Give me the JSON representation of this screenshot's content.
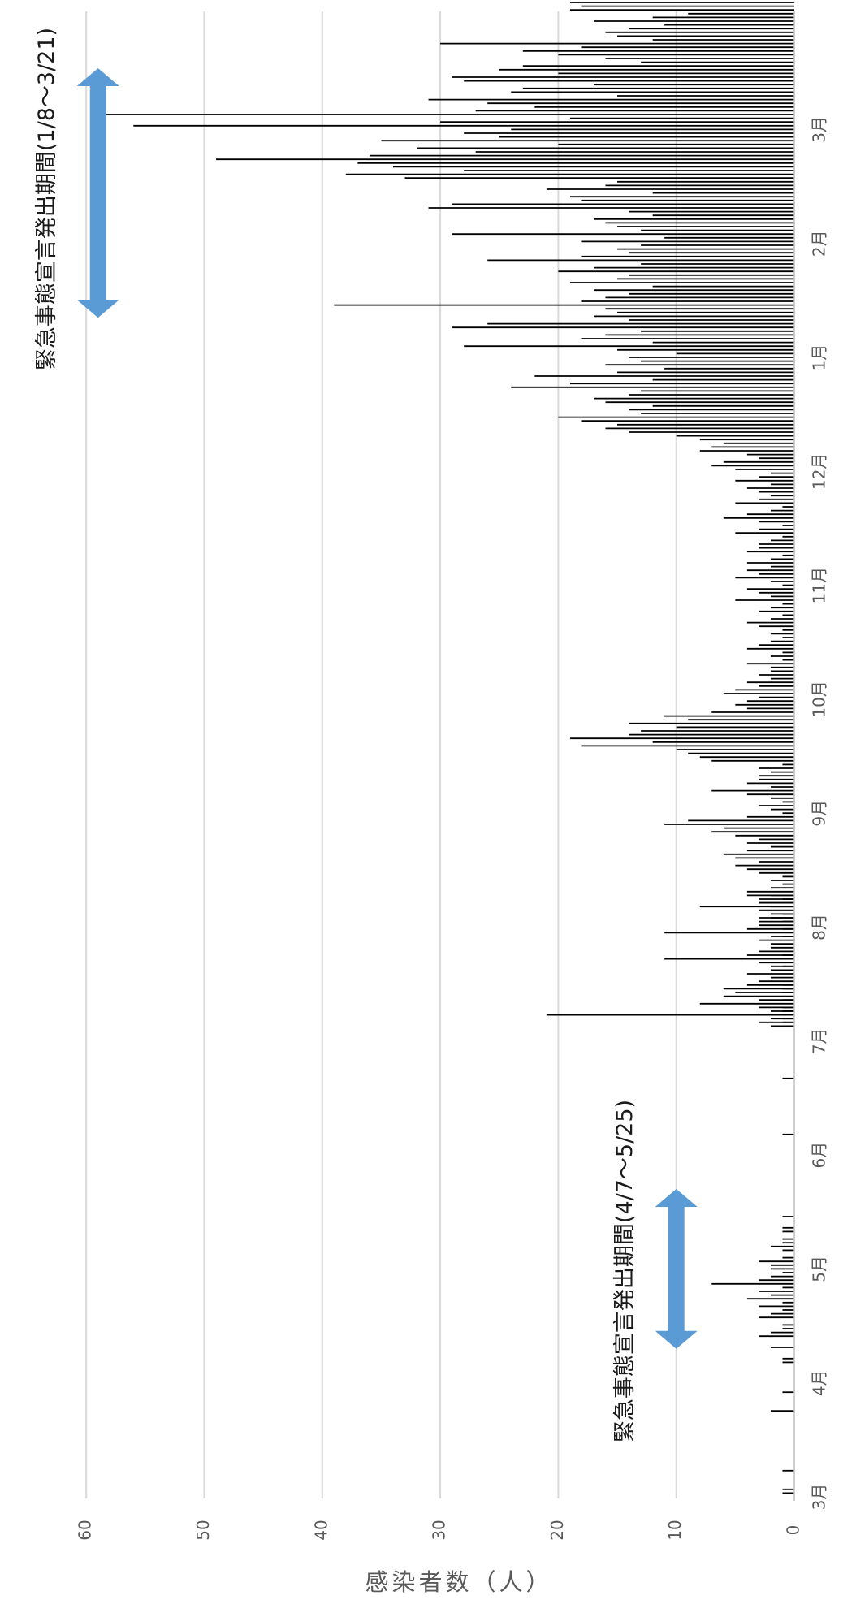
{
  "chart_data": {
    "type": "bar",
    "orientation": "rotated-90-clockwise",
    "ylabel": "感染者数（人）",
    "ylim": [
      0,
      60
    ],
    "y_ticks": [
      0,
      10,
      20,
      30,
      40,
      50,
      60
    ],
    "grid": true,
    "x_tick_labels": [
      "3月",
      "4月",
      "5月",
      "6月",
      "7月",
      "8月",
      "9月",
      "10月",
      "11月",
      "12月",
      "1月",
      "2月",
      "3月"
    ],
    "period": {
      "start_month": 3,
      "months": 13,
      "days": 396
    },
    "colors": {
      "bar": "#000000",
      "grid": "#d9d9d9",
      "arrow": "#5b9bd5",
      "axis": "#bfbfbf"
    },
    "annotations": [
      {
        "text": "緊急事態宣言発出期間(4/7～5/25)",
        "start_day": 37,
        "end_day": 85,
        "level": 10
      },
      {
        "text": "緊急事態宣言発出期間(1/8～3/21)",
        "start_day": 313,
        "end_day": 385,
        "level": 59
      }
    ],
    "segments": [
      {
        "start_day": 0,
        "values": [
          0,
          1,
          1,
          0,
          0,
          0,
          0,
          1,
          0,
          0,
          0,
          0,
          0,
          0,
          0,
          0,
          0,
          0,
          0,
          0,
          0,
          0,
          0,
          2,
          0,
          0,
          0,
          0,
          1,
          0,
          0,
          0,
          0,
          0,
          0,
          0,
          1,
          1,
          0,
          0,
          2,
          0,
          0,
          3,
          2,
          1,
          1,
          0,
          3,
          2,
          1,
          3,
          1,
          4,
          2,
          3,
          1,
          7,
          3,
          2,
          1,
          2,
          2,
          3,
          1,
          0,
          1,
          2,
          1,
          1
        ]
      },
      {
        "start_day": 70,
        "values": [
          0,
          1,
          1,
          0,
          0,
          1,
          0,
          0,
          0,
          0,
          0,
          0,
          0,
          0,
          0,
          0,
          0,
          0,
          0,
          0,
          0,
          0,
          0,
          0,
          0,
          0,
          0,
          1,
          0,
          0,
          0,
          0,
          0,
          0,
          0,
          0,
          0,
          0,
          0,
          0,
          0,
          0,
          1,
          0,
          0,
          0,
          0,
          0,
          0,
          0,
          0,
          0,
          0,
          0,
          0,
          0,
          0,
          1,
          1,
          0,
          1,
          1,
          0,
          1,
          0,
          1,
          1,
          1,
          0,
          0,
          0,
          0,
          1,
          0,
          0,
          1,
          0,
          0,
          0,
          0,
          1,
          0,
          1,
          0,
          1,
          2,
          1,
          3,
          2,
          3,
          1,
          4
        ]
      },
      {
        "start_day": 126,
        "values": [
          2,
          3,
          2,
          21,
          2,
          3,
          8,
          3,
          6,
          5,
          6,
          4,
          3,
          2,
          4,
          2,
          2,
          3,
          11,
          4,
          3,
          2,
          2,
          3,
          2,
          11,
          4,
          3,
          3,
          3,
          2,
          3,
          8,
          3,
          3,
          2,
          4,
          2,
          1,
          2,
          1,
          3,
          4,
          5,
          3,
          5,
          6,
          4,
          2,
          4,
          3,
          5,
          7,
          6,
          11,
          9,
          4,
          1,
          2,
          3,
          1,
          2,
          4,
          7,
          2,
          4,
          3,
          3,
          2,
          3,
          1,
          7,
          8,
          9,
          10,
          18,
          12,
          19,
          14,
          13,
          10,
          14,
          9,
          11,
          7,
          4,
          5,
          4,
          3,
          6,
          5,
          3,
          4,
          2
        ]
      },
      {
        "start_day": 220,
        "values": [
          3,
          2,
          2,
          4,
          1,
          2,
          1,
          4,
          3,
          2,
          1,
          2,
          1,
          3,
          4,
          2,
          1,
          3,
          2,
          1,
          5,
          2,
          3,
          4,
          1,
          2,
          5,
          3,
          4,
          2,
          4,
          2,
          1,
          4,
          3,
          3,
          2,
          1,
          5,
          3,
          1,
          3,
          6,
          4,
          2,
          1,
          5,
          3,
          2,
          3,
          4,
          2,
          5,
          3,
          2,
          5,
          7,
          6,
          3,
          4,
          8,
          7,
          6,
          8,
          10,
          14,
          16,
          15,
          18,
          20,
          13,
          14,
          12,
          16,
          17,
          14,
          13,
          24,
          19,
          12,
          22,
          15,
          11,
          16,
          13,
          14,
          10,
          15,
          28,
          12,
          18,
          16,
          13,
          29,
          26,
          14,
          17,
          15,
          16,
          39,
          18,
          16,
          14,
          17,
          12,
          19,
          15,
          14,
          20,
          17,
          13,
          26,
          18,
          14,
          15,
          13,
          18,
          11,
          29,
          13,
          15,
          16,
          17,
          12,
          14,
          31,
          29,
          18,
          19,
          12,
          21,
          16,
          15,
          33,
          38,
          28,
          34,
          37,
          49,
          36,
          27,
          32,
          20,
          35,
          25,
          28,
          24,
          56,
          30,
          19,
          59,
          27,
          22,
          26,
          31,
          15,
          24,
          23,
          17,
          28,
          29,
          20,
          25,
          23,
          13,
          16,
          20,
          23,
          18,
          30,
          12,
          15,
          16,
          14,
          11,
          17,
          12,
          9,
          19,
          18,
          19,
          17,
          16,
          10,
          21,
          12,
          18,
          15,
          11,
          13,
          10,
          12,
          16,
          10,
          11,
          13,
          9,
          12,
          11,
          10,
          13,
          16,
          12,
          11,
          15,
          14,
          10,
          15,
          12,
          16,
          9,
          17,
          13,
          11,
          8,
          10,
          12,
          14,
          7,
          9,
          6,
          8,
          11,
          13,
          12,
          20,
          17,
          15,
          10,
          21,
          14,
          34,
          24,
          18,
          25,
          27,
          26,
          24,
          21,
          23,
          17,
          18,
          28,
          27,
          13,
          30,
          11,
          18,
          14,
          11,
          15,
          14
        ]
      }
    ]
  }
}
